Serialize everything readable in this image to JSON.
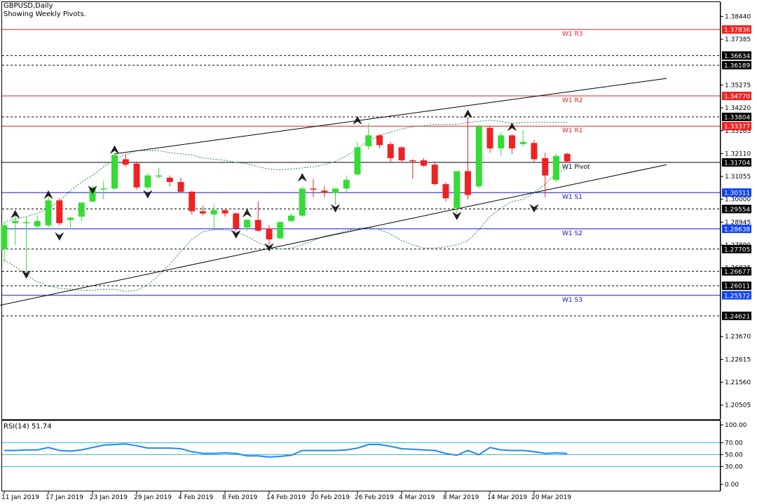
{
  "header": {
    "symbol_line": "GBPUSD,Daily",
    "pivot_line": "Showing Weekly Pivots."
  },
  "colors": {
    "bull": "#33dd33",
    "bear": "#ee2222",
    "pivot_resistance": "#dd2222",
    "pivot_support": "#1111cc",
    "rsi_line": "#2288ee",
    "rsi_level": "#33bbdd",
    "band": "#228844",
    "badge_red": "#ee2222",
    "badge_blue": "#1144ee",
    "badge_black": "#000000"
  },
  "chart_data": {
    "type": "candlestick",
    "symbol": "GBPUSD",
    "timeframe": "Daily",
    "ylim": [
      1.1985,
      1.391
    ],
    "y_ticks": [
      "1.38440",
      "1.37385",
      "1.35275",
      "1.34220",
      "1.33165",
      "1.32110",
      "1.31055",
      "1.30000",
      "1.28945",
      "1.27890",
      "1.26835",
      "1.23670",
      "1.22615",
      "1.21560",
      "1.20505"
    ],
    "x_ticks": [
      {
        "i": 0,
        "label": "11 Jan 2019"
      },
      {
        "i": 4,
        "label": "17 Jan 2019"
      },
      {
        "i": 8,
        "label": "23 Jan 2019"
      },
      {
        "i": 12,
        "label": "29 Jan 2019"
      },
      {
        "i": 16,
        "label": "4 Feb 2019"
      },
      {
        "i": 20,
        "label": "8 Feb 2019"
      },
      {
        "i": 24,
        "label": "14 Feb 2019"
      },
      {
        "i": 28,
        "label": "20 Feb 2019"
      },
      {
        "i": 32,
        "label": "26 Feb 2019"
      },
      {
        "i": 36,
        "label": "4 Mar 2019"
      },
      {
        "i": 40,
        "label": "8 Mar 2019"
      },
      {
        "i": 44,
        "label": "14 Mar 2019"
      },
      {
        "i": 48,
        "label": "20 Mar 2019"
      }
    ],
    "candles": [
      {
        "o": 1.277,
        "h": 1.2895,
        "l": 1.271,
        "c": 1.288
      },
      {
        "o": 1.289,
        "h": 1.2935,
        "l": 1.279,
        "c": 1.29
      },
      {
        "o": 1.289,
        "h": 1.292,
        "l": 1.266,
        "c": 1.2895
      },
      {
        "o": 1.2875,
        "h": 1.2925,
        "l": 1.286,
        "c": 1.29
      },
      {
        "o": 1.288,
        "h": 1.301,
        "l": 1.287,
        "c": 1.2995
      },
      {
        "o": 1.2995,
        "h": 1.3005,
        "l": 1.288,
        "c": 1.289
      },
      {
        "o": 1.2905,
        "h": 1.292,
        "l": 1.287,
        "c": 1.2915
      },
      {
        "o": 1.292,
        "h": 1.2985,
        "l": 1.29,
        "c": 1.2985
      },
      {
        "o": 1.299,
        "h": 1.306,
        "l": 1.2985,
        "c": 1.3055
      },
      {
        "o": 1.305,
        "h": 1.3085,
        "l": 1.3,
        "c": 1.305
      },
      {
        "o": 1.305,
        "h": 1.3215,
        "l": 1.3045,
        "c": 1.3205
      },
      {
        "o": 1.3185,
        "h": 1.321,
        "l": 1.315,
        "c": 1.316
      },
      {
        "o": 1.3165,
        "h": 1.3175,
        "l": 1.3045,
        "c": 1.3055
      },
      {
        "o": 1.3055,
        "h": 1.312,
        "l": 1.3045,
        "c": 1.311
      },
      {
        "o": 1.3105,
        "h": 1.3145,
        "l": 1.3095,
        "c": 1.311
      },
      {
        "o": 1.31,
        "h": 1.311,
        "l": 1.306,
        "c": 1.308
      },
      {
        "o": 1.308,
        "h": 1.31,
        "l": 1.303,
        "c": 1.3035
      },
      {
        "o": 1.3035,
        "h": 1.304,
        "l": 1.293,
        "c": 1.2945
      },
      {
        "o": 1.2945,
        "h": 1.297,
        "l": 1.2925,
        "c": 1.2935
      },
      {
        "o": 1.293,
        "h": 1.2975,
        "l": 1.2865,
        "c": 1.295
      },
      {
        "o": 1.295,
        "h": 1.2955,
        "l": 1.292,
        "c": 1.2935
      },
      {
        "o": 1.2935,
        "h": 1.294,
        "l": 1.2855,
        "c": 1.2865
      },
      {
        "o": 1.287,
        "h": 1.291,
        "l": 1.2855,
        "c": 1.2905
      },
      {
        "o": 1.2905,
        "h": 1.299,
        "l": 1.285,
        "c": 1.2855
      },
      {
        "o": 1.2865,
        "h": 1.288,
        "l": 1.279,
        "c": 1.2815
      },
      {
        "o": 1.282,
        "h": 1.29,
        "l": 1.2815,
        "c": 1.2895
      },
      {
        "o": 1.29,
        "h": 1.2935,
        "l": 1.2895,
        "c": 1.2925
      },
      {
        "o": 1.2925,
        "h": 1.306,
        "l": 1.292,
        "c": 1.305
      },
      {
        "o": 1.305,
        "h": 1.3095,
        "l": 1.301,
        "c": 1.3045
      },
      {
        "o": 1.304,
        "h": 1.306,
        "l": 1.301,
        "c": 1.303
      },
      {
        "o": 1.303,
        "h": 1.305,
        "l": 1.2975,
        "c": 1.305
      },
      {
        "o": 1.305,
        "h": 1.311,
        "l": 1.303,
        "c": 1.309
      },
      {
        "o": 1.3115,
        "h": 1.3265,
        "l": 1.311,
        "c": 1.324
      },
      {
        "o": 1.3245,
        "h": 1.335,
        "l": 1.323,
        "c": 1.3295
      },
      {
        "o": 1.3295,
        "h": 1.33,
        "l": 1.3235,
        "c": 1.325
      },
      {
        "o": 1.3255,
        "h": 1.3265,
        "l": 1.317,
        "c": 1.319
      },
      {
        "o": 1.324,
        "h": 1.3245,
        "l": 1.317,
        "c": 1.318
      },
      {
        "o": 1.318,
        "h": 1.3185,
        "l": 1.3095,
        "c": 1.3175
      },
      {
        "o": 1.318,
        "h": 1.319,
        "l": 1.315,
        "c": 1.3155
      },
      {
        "o": 1.316,
        "h": 1.3175,
        "l": 1.3065,
        "c": 1.307
      },
      {
        "o": 1.307,
        "h": 1.308,
        "l": 1.299,
        "c": 1.3005
      },
      {
        "o": 1.296,
        "h": 1.3125,
        "l": 1.2935,
        "c": 1.313
      },
      {
        "o": 1.313,
        "h": 1.338,
        "l": 1.3,
        "c": 1.302
      },
      {
        "o": 1.306,
        "h": 1.3345,
        "l": 1.305,
        "c": 1.3335
      },
      {
        "o": 1.333,
        "h": 1.334,
        "l": 1.3215,
        "c": 1.3235
      },
      {
        "o": 1.3235,
        "h": 1.331,
        "l": 1.32,
        "c": 1.3295
      },
      {
        "o": 1.3295,
        "h": 1.33,
        "l": 1.321,
        "c": 1.3235
      },
      {
        "o": 1.3255,
        "h": 1.332,
        "l": 1.3245,
        "c": 1.3265
      },
      {
        "o": 1.326,
        "h": 1.3275,
        "l": 1.3175,
        "c": 1.3185
      },
      {
        "o": 1.319,
        "h": 1.3215,
        "l": 1.301,
        "c": 1.311
      },
      {
        "o": 1.309,
        "h": 1.321,
        "l": 1.308,
        "c": 1.32
      },
      {
        "o": 1.321,
        "h": 1.3215,
        "l": 1.317,
        "c": 1.3175
      }
    ],
    "bands": {
      "upper": [
        1.2895,
        1.291,
        1.292,
        1.2935,
        1.296,
        1.299,
        1.304,
        1.308,
        1.311,
        1.315,
        1.3185,
        1.3205,
        1.3225,
        1.3225,
        1.3225,
        1.3215,
        1.321,
        1.3205,
        1.319,
        1.3185,
        1.318,
        1.317,
        1.3165,
        1.315,
        1.314,
        1.3135,
        1.314,
        1.3145,
        1.315,
        1.316,
        1.3175,
        1.32,
        1.3235,
        1.327,
        1.3295,
        1.331,
        1.3325,
        1.3335,
        1.334,
        1.3345,
        1.3345,
        1.3345,
        1.3355,
        1.336,
        1.3365,
        1.336,
        1.335,
        1.3355,
        1.3355,
        1.3355,
        1.3355,
        1.3355
      ],
      "lower": [
        1.272,
        1.269,
        1.265,
        1.262,
        1.26,
        1.259,
        1.2585,
        1.258,
        1.258,
        1.2585,
        1.2585,
        1.2575,
        1.258,
        1.2605,
        1.265,
        1.27,
        1.276,
        1.2815,
        1.285,
        1.286,
        1.286,
        1.285,
        1.283,
        1.28,
        1.278,
        1.277,
        1.2775,
        1.279,
        1.281,
        1.283,
        1.284,
        1.2855,
        1.2865,
        1.287,
        1.286,
        1.284,
        1.281,
        1.279,
        1.2775,
        1.2775,
        1.278,
        1.279,
        1.281,
        1.286,
        1.292,
        1.296,
        1.299,
        1.3,
        1.303,
        1.307,
        1.312,
        1.314
      ]
    },
    "trendlines": [
      {
        "from": {
          "i": 10,
          "p": 1.321
        },
        "to": {
          "i": 60,
          "p": 1.3558
        }
      },
      {
        "from": {
          "i": -0.4,
          "p": 1.2511
        },
        "to": {
          "i": 60,
          "p": 1.316
        }
      }
    ],
    "fractals": [
      {
        "i": 1,
        "p": 1.293,
        "dir": "up"
      },
      {
        "i": 2,
        "p": 1.2655,
        "dir": "down"
      },
      {
        "i": 4,
        "p": 1.302,
        "dir": "up"
      },
      {
        "i": 5,
        "p": 1.283,
        "dir": "down"
      },
      {
        "i": 10,
        "p": 1.3228,
        "dir": "up"
      },
      {
        "i": 8,
        "p": 1.3045,
        "dir": "down"
      },
      {
        "i": 13,
        "p": 1.3025,
        "dir": "down"
      },
      {
        "i": 22,
        "p": 1.2935,
        "dir": "up"
      },
      {
        "i": 21,
        "p": 1.284,
        "dir": "down"
      },
      {
        "i": 24,
        "p": 1.278,
        "dir": "down"
      },
      {
        "i": 27,
        "p": 1.31,
        "dir": "up"
      },
      {
        "i": 30,
        "p": 1.296,
        "dir": "down"
      },
      {
        "i": 32,
        "p": 1.3363,
        "dir": "up"
      },
      {
        "i": 41,
        "p": 1.2925,
        "dir": "down"
      },
      {
        "i": 42,
        "p": 1.3393,
        "dir": "up"
      },
      {
        "i": 46,
        "p": 1.3333,
        "dir": "up"
      },
      {
        "i": 48,
        "p": 1.296,
        "dir": "down"
      }
    ],
    "pivot_levels": [
      {
        "value": 1.37836,
        "label": "W1 R3",
        "kind": "r",
        "badge": "1.37836"
      },
      {
        "value": 1.3477,
        "label": "W1 R2",
        "kind": "r",
        "badge": "1.34770"
      },
      {
        "value": 1.33377,
        "label": "W1 R1",
        "kind": "r",
        "badge": "1.33377"
      },
      {
        "value": 1.31704,
        "label": "W1 Pivot",
        "kind": "p",
        "badge": "1.31704"
      },
      {
        "value": 1.30311,
        "label": "W1 S1",
        "kind": "s",
        "badge": "1.30311"
      },
      {
        "value": 1.28638,
        "label": "W1 S2",
        "kind": "s",
        "badge": "1.28638"
      },
      {
        "value": 1.25572,
        "label": "W1 S3",
        "kind": "s",
        "badge": "1.25572"
      }
    ],
    "dashed_levels": [
      {
        "value": 1.36634,
        "badge": "1.36634"
      },
      {
        "value": 1.36189,
        "badge": "1.36189"
      },
      {
        "value": 1.33804,
        "badge": "1.33804"
      },
      {
        "value": 1.29554,
        "badge": "1.29554"
      },
      {
        "value": 1.27705,
        "badge": "1.27705"
      },
      {
        "value": 1.26677,
        "badge": "1.26677"
      },
      {
        "value": 1.26011,
        "badge": "1.26011"
      },
      {
        "value": 1.24621,
        "badge": "1.24621"
      }
    ],
    "rsi": {
      "label": "RSI(14) 51.74",
      "ylim": [
        0,
        100
      ],
      "ticks": [
        "100.00",
        "70.00",
        "50.00",
        "30.00",
        "0.00"
      ],
      "levels": [
        70,
        50,
        30
      ],
      "values": [
        57,
        57,
        58,
        58,
        62,
        57,
        56,
        58,
        62,
        66,
        67,
        68,
        65,
        61,
        61,
        61,
        60,
        55,
        52,
        52,
        53,
        52,
        48,
        48,
        46,
        47,
        49,
        57,
        57,
        57,
        57,
        58,
        61,
        67,
        67,
        64,
        60,
        59,
        58,
        57,
        52,
        49,
        57,
        50,
        62,
        58,
        57,
        57,
        55,
        52,
        53,
        52
      ]
    }
  }
}
